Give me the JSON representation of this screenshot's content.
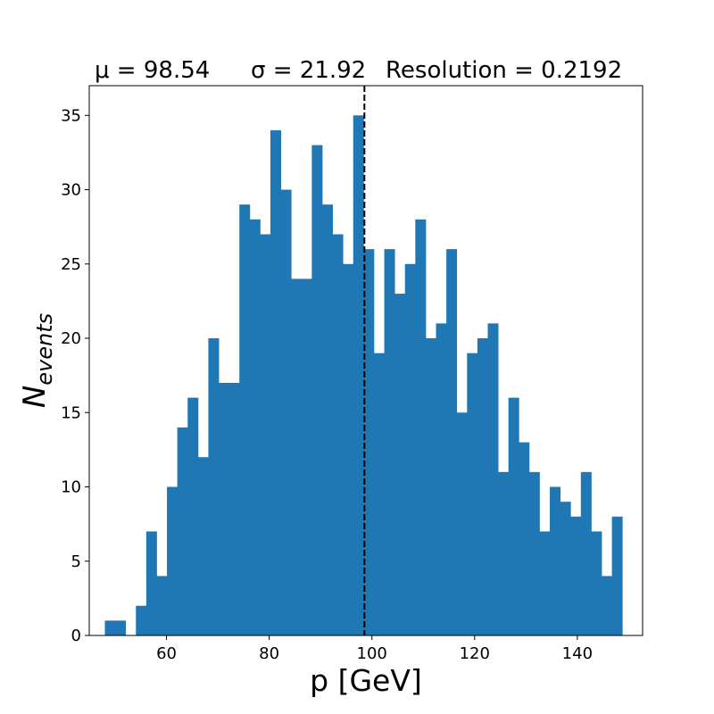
{
  "chart_data": {
    "type": "bar",
    "title_parts": {
      "mu": "μ = 98.54",
      "sigma": "σ = 21.92",
      "resolution": "Resolution = 0.2192"
    },
    "xlabel": "p [GeV]",
    "ylabel_main": "N",
    "ylabel_sub": "events",
    "xlim": [
      44.96,
      152.71
    ],
    "ylim": [
      0,
      37
    ],
    "xticks": [
      60,
      80,
      100,
      120,
      140
    ],
    "yticks": [
      0,
      5,
      10,
      15,
      20,
      25,
      30,
      35
    ],
    "bin_start": 48.0,
    "bin_width": 2.015,
    "counts": [
      1,
      1,
      0,
      2,
      7,
      4,
      10,
      14,
      16,
      12,
      20,
      17,
      17,
      29,
      28,
      27,
      34,
      30,
      24,
      24,
      33,
      29,
      27,
      25,
      35,
      26,
      19,
      26,
      23,
      25,
      28,
      20,
      21,
      26,
      15,
      19,
      20,
      21,
      11,
      16,
      13,
      11,
      7,
      10,
      9,
      8,
      11,
      7,
      4,
      8
    ],
    "mean_line_x": 98.54,
    "bar_color": "#1f77b4",
    "mean_line_color": "#000000",
    "mean_line_style": "dashed",
    "grid": false,
    "legend": "none"
  }
}
